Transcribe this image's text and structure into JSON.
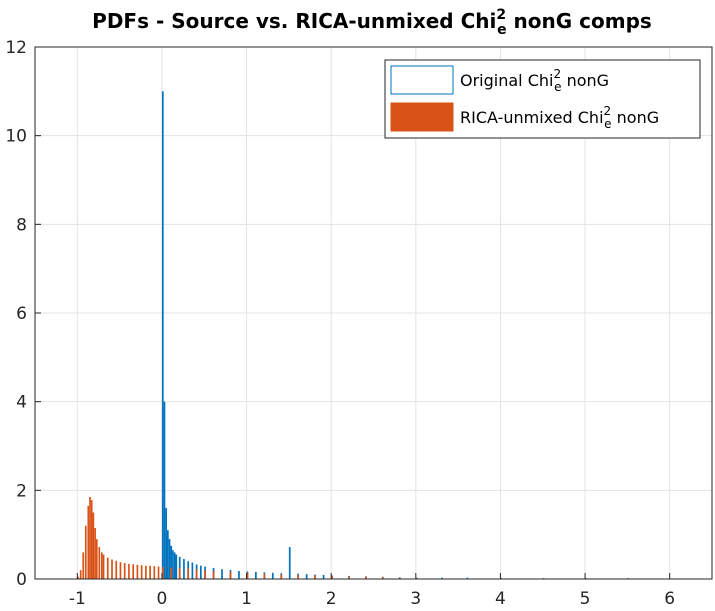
{
  "chart_data": {
    "type": "bar",
    "title": {
      "prefix": "PDFs - Source vs. RICA-unmixed Chi",
      "sup": "2",
      "sub": "e",
      "suffix": " nonG comps"
    },
    "xlabel": "",
    "ylabel": "",
    "xlim": [
      -1.5,
      6.5
    ],
    "ylim": [
      0,
      12
    ],
    "xticks": [
      -1,
      0,
      1,
      2,
      3,
      4,
      5,
      6
    ],
    "yticks": [
      0,
      2,
      4,
      6,
      8,
      10,
      12
    ],
    "grid": true,
    "legend_position": "top-right",
    "series": [
      {
        "name": {
          "prefix": "Original Chi",
          "sup": "2",
          "sub": "e",
          "suffix": " nonG"
        },
        "color": "#0072BD",
        "bin_width": 0.02,
        "x": [
          0.0,
          0.02,
          0.04,
          0.06,
          0.08,
          0.1,
          0.12,
          0.14,
          0.16,
          0.2,
          0.25,
          0.3,
          0.35,
          0.4,
          0.45,
          0.5,
          0.6,
          0.7,
          0.8,
          0.9,
          1.0,
          1.1,
          1.2,
          1.3,
          1.4,
          1.5,
          1.6,
          1.7,
          1.8,
          1.9,
          2.0,
          2.2,
          2.4,
          2.6,
          2.8,
          3.0,
          3.3,
          3.6,
          4.0,
          4.5,
          5.0,
          5.5
        ],
        "values": [
          11.0,
          4.0,
          1.6,
          1.1,
          0.9,
          0.75,
          0.65,
          0.6,
          0.55,
          0.5,
          0.45,
          0.4,
          0.37,
          0.33,
          0.3,
          0.28,
          0.25,
          0.22,
          0.2,
          0.18,
          0.17,
          0.16,
          0.15,
          0.14,
          0.13,
          0.72,
          0.12,
          0.11,
          0.1,
          0.09,
          0.08,
          0.07,
          0.06,
          0.05,
          0.04,
          0.03,
          0.03,
          0.03,
          0.02,
          0.02,
          0.02,
          0.02
        ]
      },
      {
        "name": {
          "prefix": "RICA-unmixed Chi",
          "sup": "2",
          "sub": "e",
          "suffix": " nonG"
        },
        "color": "#D95319",
        "bin_width": 0.02,
        "x": [
          -1.05,
          -1.0,
          -0.97,
          -0.94,
          -0.91,
          -0.88,
          -0.86,
          -0.84,
          -0.82,
          -0.8,
          -0.78,
          -0.75,
          -0.72,
          -0.7,
          -0.65,
          -0.6,
          -0.55,
          -0.5,
          -0.45,
          -0.4,
          -0.35,
          -0.3,
          -0.25,
          -0.2,
          -0.15,
          -0.1,
          -0.05,
          0.0,
          0.1,
          0.2,
          0.3,
          0.4,
          0.5,
          0.6,
          0.8,
          1.0,
          1.2,
          1.4,
          1.6,
          1.8,
          2.0,
          2.2,
          2.4,
          2.6,
          2.8,
          3.0,
          3.2,
          3.4
        ],
        "values": [
          0.0,
          0.05,
          0.2,
          0.6,
          1.2,
          1.65,
          1.85,
          1.78,
          1.5,
          1.15,
          0.9,
          0.72,
          0.6,
          0.55,
          0.48,
          0.44,
          0.41,
          0.38,
          0.36,
          0.34,
          0.33,
          0.32,
          0.31,
          0.3,
          0.3,
          0.29,
          0.28,
          0.27,
          0.26,
          0.25,
          0.24,
          0.22,
          0.2,
          0.18,
          0.16,
          0.14,
          0.12,
          0.1,
          0.09,
          0.08,
          0.07,
          0.06,
          0.05,
          0.04,
          0.03,
          0.02,
          0.01,
          0.0
        ]
      }
    ]
  }
}
